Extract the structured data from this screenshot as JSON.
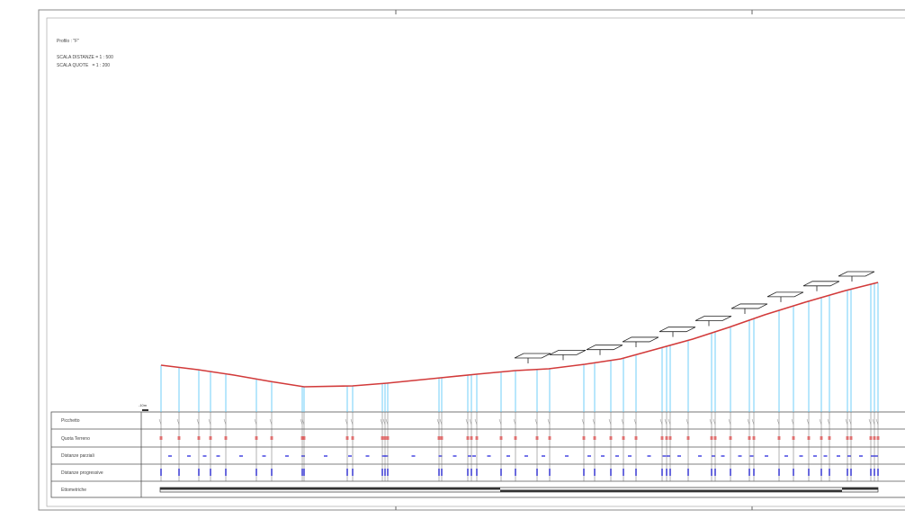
{
  "header": {
    "profile": "Profilo : \"F\"",
    "scale_distances": "SCALA DISTANZE = 1 : 500",
    "scale_heights": "SCALA QUOTE   = 1 : 200"
  },
  "scale_bar": {
    "label": "-10m"
  },
  "table": {
    "rows": [
      "Picchetto",
      "Quota Terreno",
      "Distanze parziali",
      "Distanze progressive",
      "Ettometriche"
    ]
  },
  "colors": {
    "profile_line": "#d23a3a",
    "verticals": "#4fc3f7",
    "value_text": "#3a3adf",
    "red_text": "#e05050",
    "frame": "#777777"
  }
}
